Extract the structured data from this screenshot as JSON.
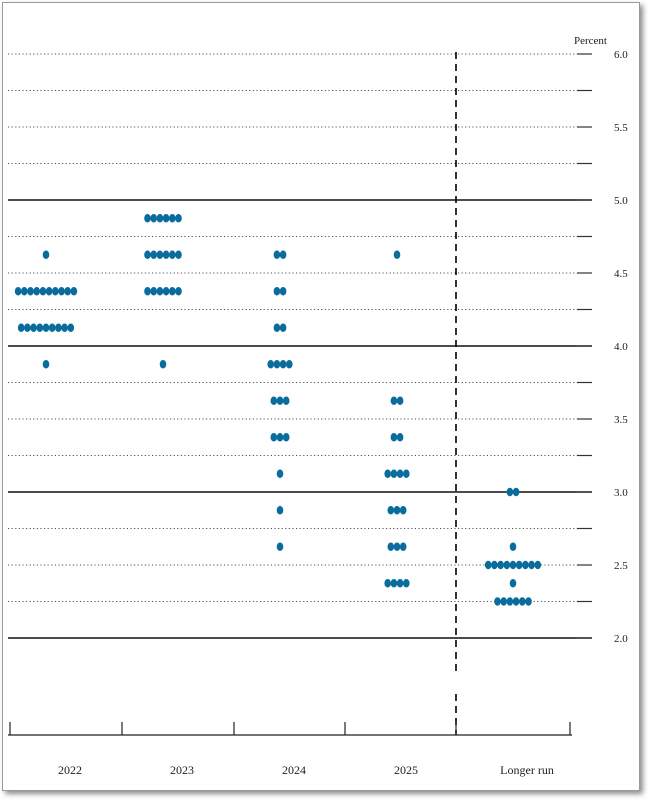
{
  "chart_data": {
    "type": "scatter",
    "subtype": "dot-plot",
    "ylabel": "Percent",
    "ylim": [
      1.5,
      6.25
    ],
    "yticks": [
      2.0,
      2.5,
      3.0,
      3.5,
      4.0,
      4.5,
      5.0,
      5.5,
      6.0
    ],
    "ytick_labels": [
      "2.0",
      "2.5",
      "3.0",
      "3.5",
      "4.0",
      "4.5",
      "5.0",
      "5.5",
      "6.0"
    ],
    "categories": [
      "2022",
      "2023",
      "2024",
      "2025",
      "Longer run"
    ],
    "grid": "dotted every 0.25, solid at whole numbers",
    "divider": "dashed vertical line between 2025 and Longer run",
    "dot_color": "#0a6c9c",
    "points": [
      {
        "category": "2022",
        "y": 4.625,
        "count": 1
      },
      {
        "category": "2022",
        "y": 4.375,
        "count": 10
      },
      {
        "category": "2022",
        "y": 4.125,
        "count": 9
      },
      {
        "category": "2022",
        "y": 3.875,
        "count": 1
      },
      {
        "category": "2023",
        "y": 4.875,
        "count": 6
      },
      {
        "category": "2023",
        "y": 4.625,
        "count": 6
      },
      {
        "category": "2023",
        "y": 4.375,
        "count": 6
      },
      {
        "category": "2023",
        "y": 3.875,
        "count": 1
      },
      {
        "category": "2024",
        "y": 4.625,
        "count": 2
      },
      {
        "category": "2024",
        "y": 4.375,
        "count": 2
      },
      {
        "category": "2024",
        "y": 4.125,
        "count": 2
      },
      {
        "category": "2024",
        "y": 3.875,
        "count": 4
      },
      {
        "category": "2024",
        "y": 3.625,
        "count": 3
      },
      {
        "category": "2024",
        "y": 3.375,
        "count": 3
      },
      {
        "category": "2024",
        "y": 3.125,
        "count": 1
      },
      {
        "category": "2024",
        "y": 2.875,
        "count": 1
      },
      {
        "category": "2024",
        "y": 2.625,
        "count": 1
      },
      {
        "category": "2025",
        "y": 4.625,
        "count": 1
      },
      {
        "category": "2025",
        "y": 3.625,
        "count": 2
      },
      {
        "category": "2025",
        "y": 3.375,
        "count": 2
      },
      {
        "category": "2025",
        "y": 3.125,
        "count": 4
      },
      {
        "category": "2025",
        "y": 2.875,
        "count": 3
      },
      {
        "category": "2025",
        "y": 2.625,
        "count": 3
      },
      {
        "category": "2025",
        "y": 2.375,
        "count": 4
      },
      {
        "category": "Longer run",
        "y": 3.0,
        "count": 2
      },
      {
        "category": "Longer run",
        "y": 2.625,
        "count": 1
      },
      {
        "category": "Longer run",
        "y": 2.5,
        "count": 9
      },
      {
        "category": "Longer run",
        "y": 2.375,
        "count": 1
      },
      {
        "category": "Longer run",
        "y": 2.25,
        "count": 6
      }
    ]
  }
}
